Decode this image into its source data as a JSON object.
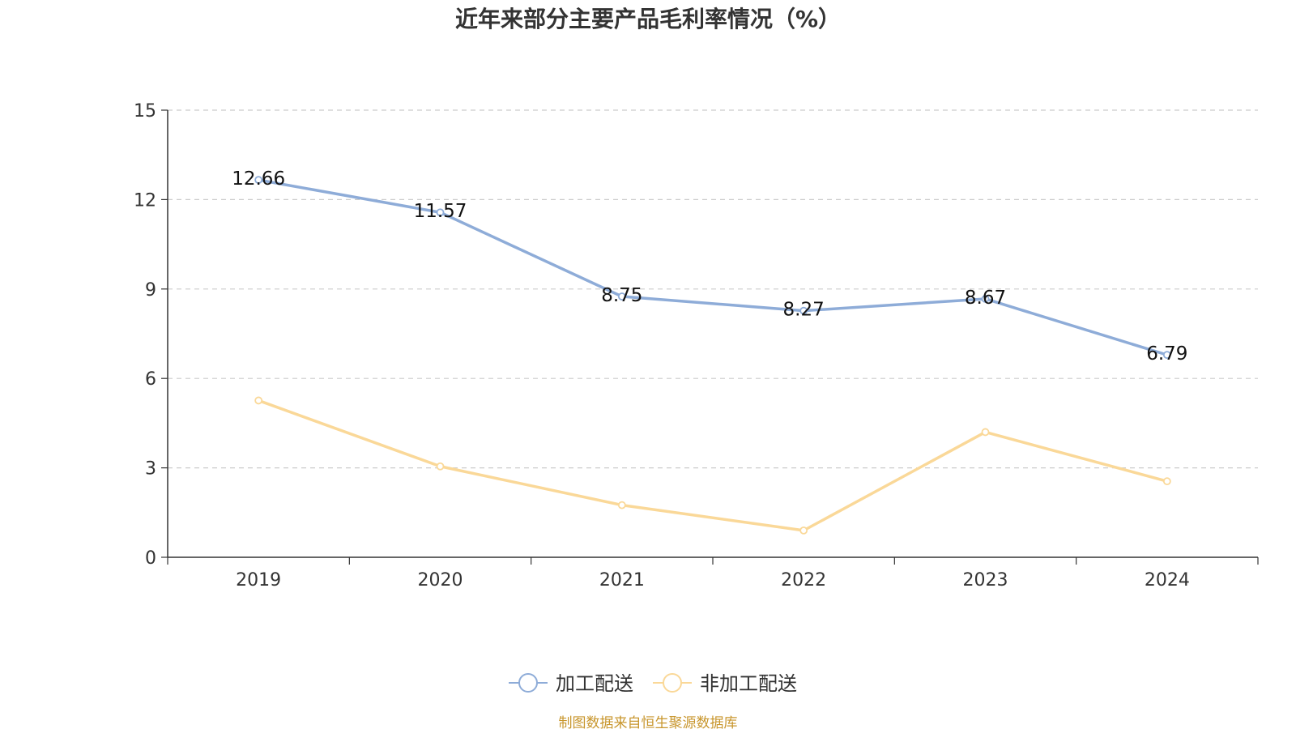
{
  "chart_data": {
    "type": "line",
    "title": "近年来部分主要产品毛利率情况（%）",
    "categories": [
      "2019",
      "2020",
      "2021",
      "2022",
      "2023",
      "2024"
    ],
    "series": [
      {
        "name": "加工配送",
        "values": [
          12.66,
          11.57,
          8.75,
          8.27,
          8.67,
          6.79
        ],
        "color": "#8eacd8",
        "show_labels": true
      },
      {
        "name": "非加工配送",
        "values": [
          5.26,
          3.05,
          1.75,
          0.9,
          4.2,
          2.55
        ],
        "color": "#fad898",
        "show_labels": false
      }
    ],
    "ylim": [
      0,
      15
    ],
    "yticks": [
      0,
      3,
      6,
      9,
      12,
      15
    ],
    "grid": true,
    "legend_position": "bottom"
  },
  "source_note": "制图数据来自恒生聚源数据库"
}
